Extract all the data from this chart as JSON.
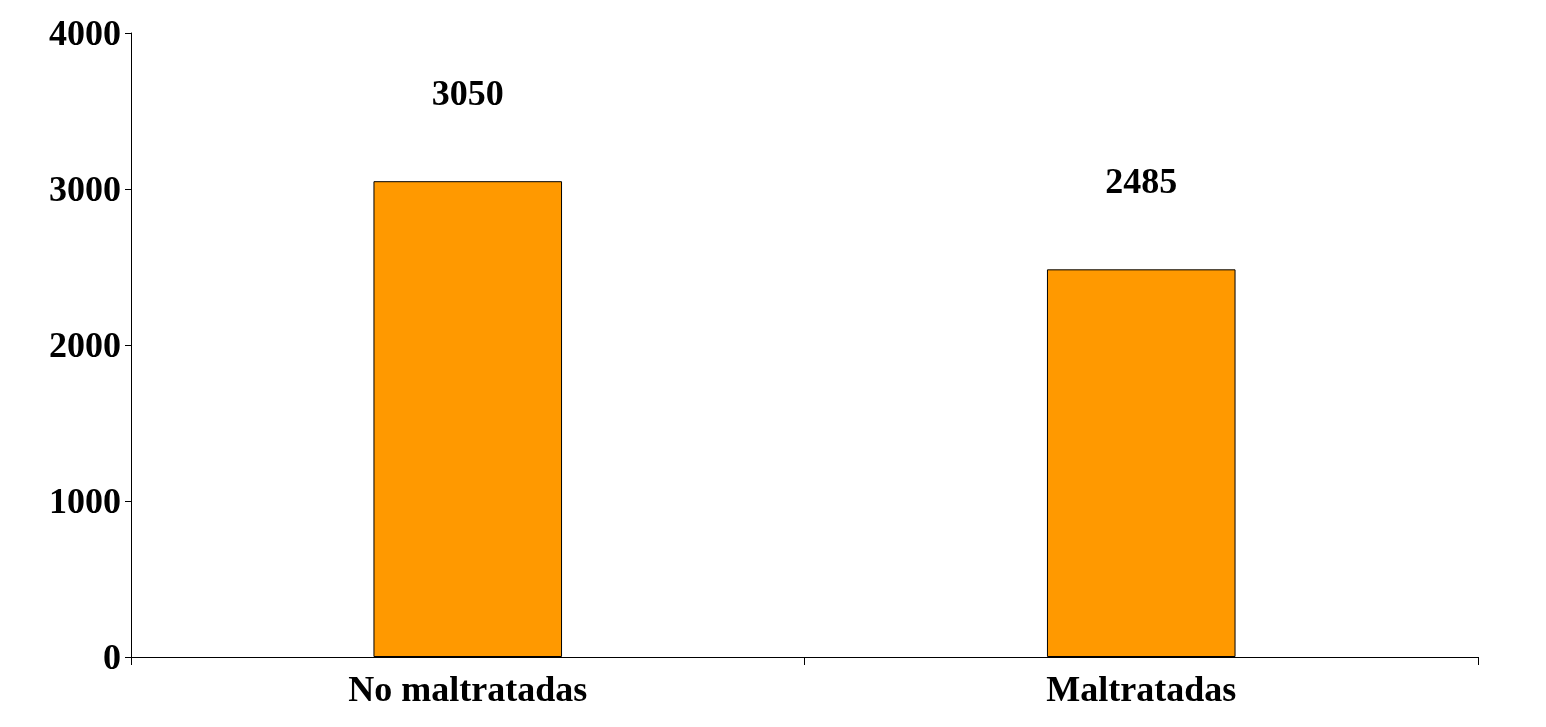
{
  "chart_data": {
    "type": "bar",
    "categories": [
      "No maltratadas",
      "Maltratadas"
    ],
    "values": [
      3050,
      2485
    ],
    "color": "#ff9900",
    "ylim": [
      0,
      4000
    ],
    "yticks": [
      0,
      1000,
      2000,
      3000,
      4000
    ],
    "grid": false,
    "data_labels": true
  }
}
